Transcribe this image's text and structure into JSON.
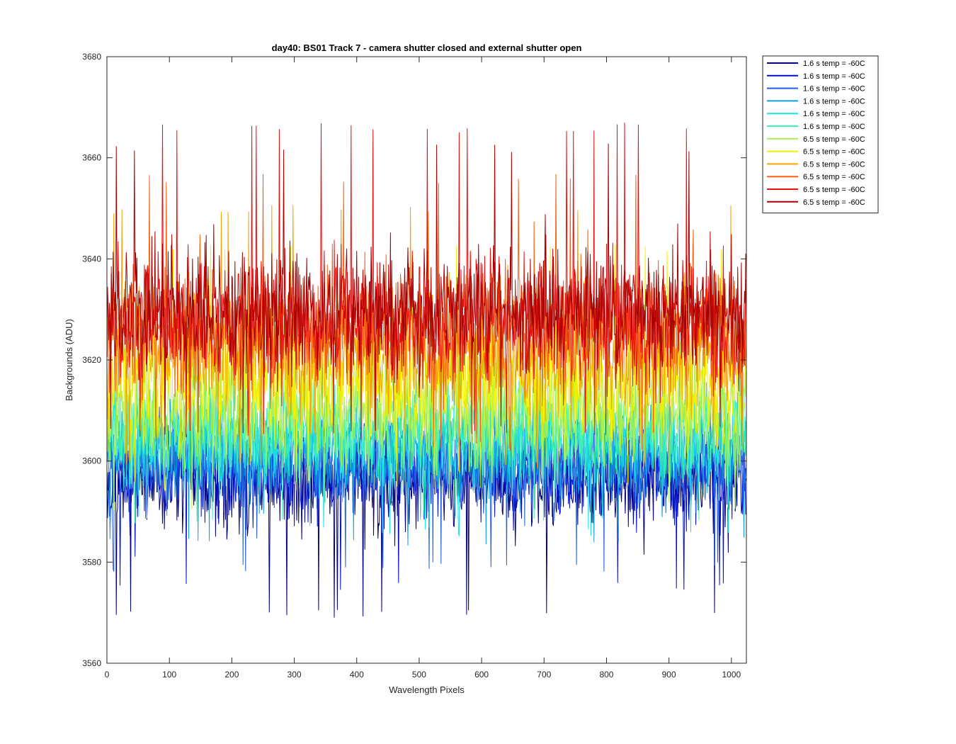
{
  "chart_data": {
    "type": "line",
    "title": "day40: BS01  Track 7 - camera shutter closed and external shutter open",
    "xlabel": "Wavelength Pixels",
    "ylabel": "Backgrounds (ADU)",
    "xlim": [
      0,
      1024
    ],
    "ylim": [
      3560,
      3680
    ],
    "xticks": [
      0,
      100,
      200,
      300,
      400,
      500,
      600,
      700,
      800,
      900,
      1000
    ],
    "yticks": [
      3560,
      3580,
      3600,
      3620,
      3640,
      3660,
      3680
    ],
    "grid": false,
    "legend_position": "outside-top-right",
    "n_points": 1024,
    "series": [
      {
        "name": "1.6 s temp = -60C",
        "color": "#000080",
        "mean": 3596,
        "std": 4.5,
        "min": 3569,
        "max": 3606
      },
      {
        "name": "1.6 s temp = -60C",
        "color": "#0010c8",
        "mean": 3598,
        "std": 4.5,
        "min": 3574,
        "max": 3608
      },
      {
        "name": "1.6 s temp = -60C",
        "color": "#1f5fe0",
        "mean": 3600,
        "std": 4.5,
        "min": 3578,
        "max": 3611
      },
      {
        "name": "1.6 s temp = -60C",
        "color": "#0fa0e8",
        "mean": 3602,
        "std": 4.5,
        "min": 3583,
        "max": 3614
      },
      {
        "name": "1.6 s temp = -60C",
        "color": "#1fe0e0",
        "mean": 3604,
        "std": 4.5,
        "min": 3585,
        "max": 3617
      },
      {
        "name": "1.6 s temp = -60C",
        "color": "#40f0b0",
        "mean": 3606,
        "std": 4.5,
        "min": 3587,
        "max": 3620
      },
      {
        "name": "6.5 s temp = -60C",
        "color": "#a8f050",
        "mean": 3610,
        "std": 5.5,
        "min": 3590,
        "max": 3626
      },
      {
        "name": "6.5 s temp = -60C",
        "color": "#f0f000",
        "mean": 3616,
        "std": 6,
        "min": 3594,
        "max": 3643
      },
      {
        "name": "6.5 s temp = -60C",
        "color": "#f8a000",
        "mean": 3622,
        "std": 6,
        "min": 3598,
        "max": 3651
      },
      {
        "name": "6.5 s temp = -60C",
        "color": "#f86010",
        "mean": 3626,
        "std": 6,
        "min": 3602,
        "max": 3657
      },
      {
        "name": "6.5 s temp = -60C",
        "color": "#e81010",
        "mean": 3628,
        "std": 6,
        "min": 3604,
        "max": 3667
      },
      {
        "name": "6.5 s temp = -60C",
        "color": "#a80000",
        "mean": 3630,
        "std": 6,
        "min": 3605,
        "max": 3663
      }
    ]
  }
}
